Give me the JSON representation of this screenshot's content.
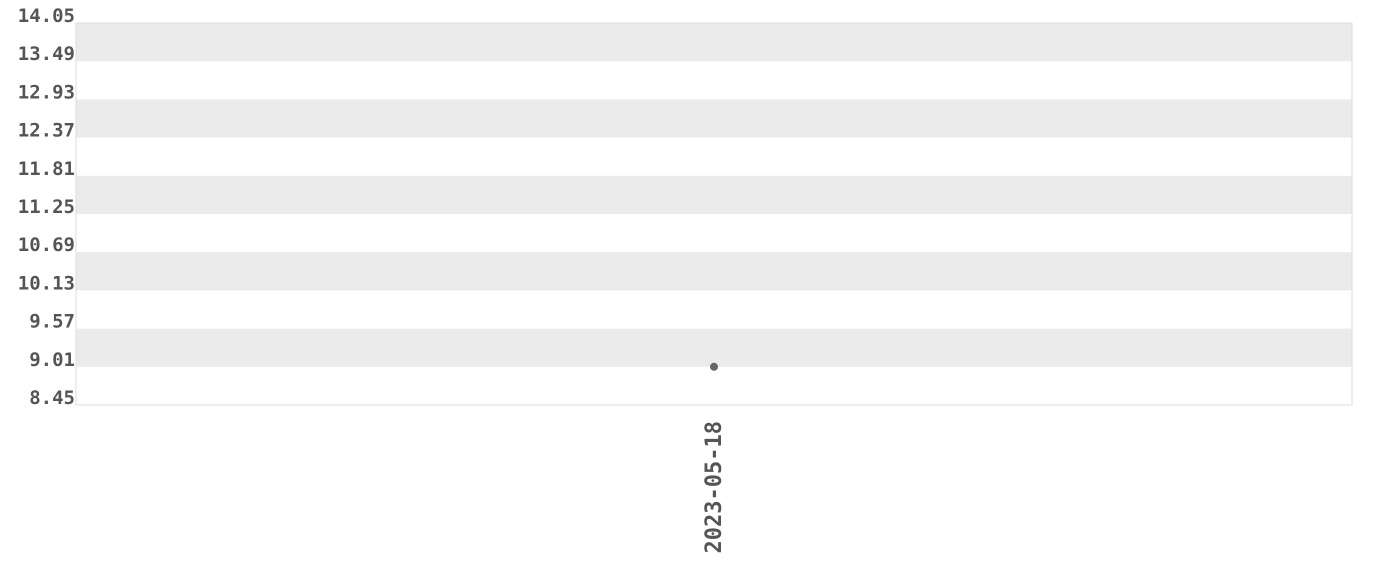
{
  "chart_data": {
    "type": "scatter",
    "title": "",
    "xlabel": "",
    "ylabel": "",
    "x_categories": [
      "2023-05-18"
    ],
    "points": [
      {
        "x": "2023-05-18",
        "y": 9.01
      }
    ],
    "ylim": [
      8.45,
      14.05
    ],
    "y_ticks": [
      "14.05",
      "13.49",
      "12.93",
      "12.37",
      "11.81",
      "11.25",
      "10.69",
      "10.13",
      "9.57",
      "9.01",
      "8.45"
    ],
    "grid": "alternating horizontal bands",
    "colors": {
      "band": "#ebebeb",
      "point": "#666666",
      "text": "#555555",
      "border": "#dddddd"
    }
  }
}
